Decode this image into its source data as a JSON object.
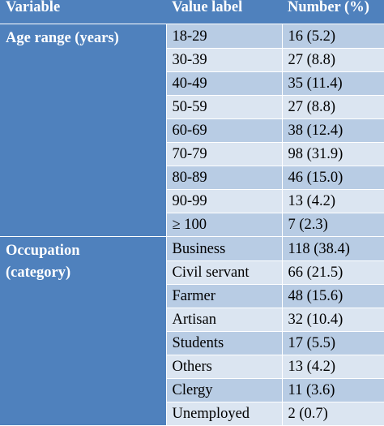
{
  "headers": {
    "variable": "Variable",
    "value_label": "Value label",
    "number": "Number (%)"
  },
  "groups": [
    {
      "variable": [
        "Age range (years)"
      ],
      "rows": [
        {
          "label": "18-29",
          "number": "16 (5.2)"
        },
        {
          "label": "30-39",
          "number": "27 (8.8)"
        },
        {
          "label": "40-49",
          "number": "35 (11.4)"
        },
        {
          "label": "50-59",
          "number": "27 (8.8)"
        },
        {
          "label": "60-69",
          "number": "38 (12.4)"
        },
        {
          "label": "70-79",
          "number": "98 (31.9)"
        },
        {
          "label": "80-89",
          "number": "46 (15.0)"
        },
        {
          "label": "90-99",
          "number": "13 (4.2)"
        },
        {
          "label": "≥ 100",
          "number": "7 (2.3)"
        }
      ]
    },
    {
      "variable": [
        "Occupation",
        "(category)"
      ],
      "rows": [
        {
          "label": "Business",
          "number": "118 (38.4)"
        },
        {
          "label": "Civil servant",
          "number": "66 (21.5)"
        },
        {
          "label": "Farmer",
          "number": "48 (15.6)"
        },
        {
          "label": "Artisan",
          "number": "32 (10.4)"
        },
        {
          "label": "Students",
          "number": "17 (5.5)"
        },
        {
          "label": "Others",
          "number": "13 (4.2)"
        },
        {
          "label": "Clergy",
          "number": "11 (3.6)"
        },
        {
          "label": "Unemployed",
          "number": "2 (0.7)"
        }
      ]
    }
  ]
}
